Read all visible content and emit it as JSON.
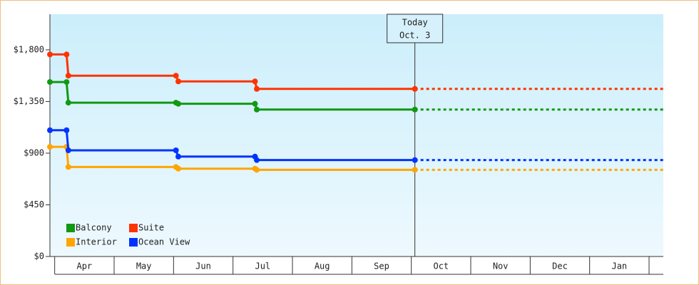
{
  "chart_data": {
    "type": "step-line",
    "x": [
      3.92,
      4.2,
      4.23,
      6.04,
      6.08,
      7.37,
      7.4,
      10.06
    ],
    "series": [
      {
        "name": "Balcony",
        "color": "#119911",
        "values": [
          1520,
          1520,
          1340,
          1340,
          1330,
          1330,
          1280,
          1280
        ]
      },
      {
        "name": "Suite",
        "color": "#ff3300",
        "values": [
          1760,
          1760,
          1575,
          1575,
          1525,
          1525,
          1460,
          1460
        ]
      },
      {
        "name": "Interior",
        "color": "#ffa500",
        "values": [
          955,
          955,
          780,
          780,
          765,
          765,
          755,
          755
        ]
      },
      {
        "name": "Ocean View",
        "color": "#0033ff",
        "values": [
          1100,
          1100,
          925,
          925,
          870,
          870,
          840,
          840
        ]
      }
    ],
    "xlim": [
      3.92,
      14.24
    ],
    "xticks": [
      {
        "value": 4.5,
        "label": "Apr"
      },
      {
        "value": 5.5,
        "label": "May"
      },
      {
        "value": 6.5,
        "label": "Jun"
      },
      {
        "value": 7.5,
        "label": "Jul"
      },
      {
        "value": 8.5,
        "label": "Aug"
      },
      {
        "value": 9.5,
        "label": "Sep"
      },
      {
        "value": 10.5,
        "label": "Oct"
      },
      {
        "value": 11.5,
        "label": "Nov"
      },
      {
        "value": 12.5,
        "label": "Dec"
      },
      {
        "value": 13.5,
        "label": "Jan"
      }
    ],
    "ylim": [
      0,
      2110
    ],
    "yticks": [
      {
        "value": 0,
        "label": "$0"
      },
      {
        "value": 450,
        "label": "$450"
      },
      {
        "value": 900,
        "label": "$900"
      },
      {
        "value": 1350,
        "label": "$1,350"
      },
      {
        "value": 1800,
        "label": "$1,800"
      }
    ],
    "today": {
      "x": 10.06,
      "label": [
        "Today",
        "Oct. 3"
      ]
    },
    "legend": "lower left"
  }
}
